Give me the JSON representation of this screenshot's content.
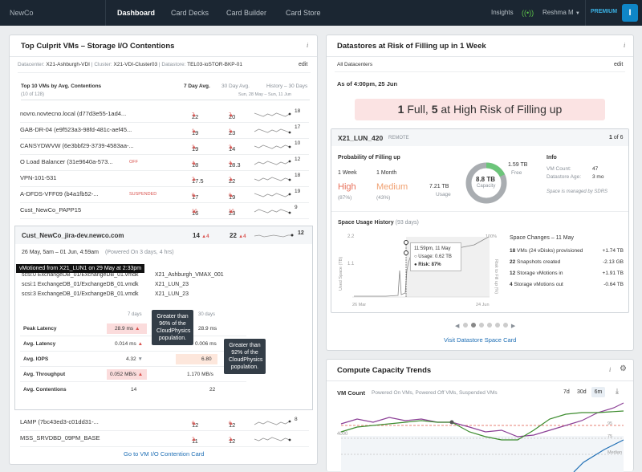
{
  "nav": {
    "logo": "NewCo",
    "tabs": [
      "Dashboard",
      "Card Decks",
      "Card Builder",
      "Card Store"
    ],
    "insights": "Insights",
    "user": "Reshma M",
    "premium": "PREMIUM",
    "badge": "I"
  },
  "left": {
    "title": "Top Culprit VMs – Storage I/O Contentions",
    "info": "i",
    "filter": {
      "dc_label": "Datacenter:",
      "dc": "X21-Ashburgh-VDI",
      "cl_label": "Cluster:",
      "cl": "X21-VDI-Cluster03",
      "ds_label": "Datastore:",
      "ds": "TEL03-ioSTOR-BKP-01",
      "edit": "edit"
    },
    "table_head": {
      "title": "Top 10 VMs by Avg. Contentions",
      "sub": "(10 of 128)",
      "col1": "7 Day Avg.",
      "col2": "30 Day Avg.",
      "col3": "History – 30 Days",
      "daterange": "Sun, 28 May – Sun, 11 Jun"
    },
    "rows": [
      {
        "name": "novro.novtecno.local (d77d3e55-1ad4...",
        "tag": "",
        "a": "22",
        "ad": "7",
        "b": "20",
        "bd": "7",
        "h": "18"
      },
      {
        "name": "GAB-DR-04 (e9f523a3-98fd-481c-aef45...",
        "tag": "",
        "a": "19",
        "ad": "1",
        "b": "23",
        "bd": "1",
        "h": "17"
      },
      {
        "name": "CANSYDWVW (6e3bbf29-3739-4583aa-...",
        "tag": "",
        "a": "19",
        "ad": "3",
        "b": "14",
        "bd": "3",
        "h": "10"
      },
      {
        "name": "O Load Balancer (31e9640a-573...",
        "tag": "OFF",
        "a": "18",
        "ad": "4",
        "b": "18.3",
        "bd": "4",
        "h": "12"
      },
      {
        "name": "VPN-101-531",
        "tag": "",
        "a": "17.5",
        "ad": "2",
        "b": "22",
        "bd": "2",
        "h": "18"
      },
      {
        "name": "A-DFDS-VFF09 (b4a1fb52-...",
        "tag": "SUSPENDED",
        "a": "17",
        "ad": "6",
        "b": "19",
        "bd": "6",
        "h": "19"
      },
      {
        "name": "Cust_NewCo_PAPP15",
        "tag": "",
        "a": "16",
        "ad": "10",
        "b": "23",
        "bd": "10",
        "h": "9"
      }
    ],
    "expanded": {
      "name": "Cust_NewCo_jira-dev.newco.com",
      "a": "14",
      "ad": "4",
      "b": "22",
      "bd": "4",
      "h": "12",
      "range": "26 May, 5am – 01 Jun, 4:59am",
      "powered": "(Powered On 3 days, 4 hrs)",
      "vmotion": "vMotioned from X21_LUN1 on 29 May at 2:33pm",
      "disks": [
        {
          "d": "scsi:0 ExchangeDB_01/ExchangeDB_01.vmdk",
          "l": "X21_Ashburgh_VMAX_001"
        },
        {
          "d": "scsi:1 ExchangeDB_01/ExchangeDB_01.vmdk",
          "l": "X21_LUN_23"
        },
        {
          "d": "scsi:3 ExchangeDB_01/ExchangeDB_01.vmdk",
          "l": "X21_LUN_23"
        }
      ],
      "col7": "7 days",
      "col30": "30 days",
      "metrics": [
        {
          "n": "Peak Latency",
          "v7": "28.9 ms",
          "v30": "28.9 ms"
        },
        {
          "n": "Avg. Latency",
          "v7": "0.014 ms",
          "v30": "0.006 ms"
        },
        {
          "n": "Avg. IOPS",
          "v7": "4.32",
          "v30": "6.80"
        },
        {
          "n": "Avg. Throughput",
          "v7": "0.052 MB/s",
          "v30": "1.170 MB/s"
        },
        {
          "n": "Avg. Contentions",
          "v7": "14",
          "v30": "22"
        }
      ],
      "tip1": [
        "Greater than",
        "96% of the",
        "CloudPhysics",
        "population."
      ],
      "tip2": [
        "Greater than",
        "92% of the",
        "CloudPhysics",
        "population."
      ]
    },
    "rows2": [
      {
        "name": "LAMP (7bc43ed3-c01dd31-...",
        "a": "12",
        "ad": "6",
        "b": "12",
        "bd": "6",
        "h": "8"
      },
      {
        "name": "MSS_SRVDBD_09PM_BASE",
        "a": "11",
        "ad": "2",
        "b": "12",
        "bd": "2",
        "h": ""
      }
    ],
    "footer": "Go to VM I/O Contention Card"
  },
  "right1": {
    "title": "Datastores at Risk of Filling up in 1 Week",
    "info": "i",
    "filter": "All Datacenters",
    "edit": "edit",
    "asof": "As of 4:00pm, 25 Jun",
    "banner": {
      "n1": "1",
      "t1": " Full, ",
      "n2": "5",
      "t2": " at High Risk of Filling up"
    },
    "ds": {
      "name": "X21_LUN_420",
      "remote": "REMOTE",
      "page": "1",
      "of": " of 6",
      "prob_title": "Probability of Filling up",
      "w1": "1 Week",
      "w2": "1 Month",
      "r1": "High",
      "r2": "Medium",
      "p1": "(87%)",
      "p2": "(43%)",
      "used": "7.21 TB",
      "used_l": "Usage",
      "cap": "8.8 TB",
      "cap_l": "Capacity",
      "free": "1.59 TB",
      "free_l": "Free",
      "used_frac": 0.82,
      "info_title": "Info",
      "vmcount_l": "VM Count:",
      "vmcount": "47",
      "age_l": "Datastore Age:",
      "age": "3 mo",
      "managed": "Space is managed by SDRS",
      "hist_title": "Space Usage History",
      "hist_sub": "(93 days)",
      "y_top": "2.2",
      "y_mid": "1.1",
      "y_axis": "Used Space (TB)",
      "y2_axis": "Risk to Fill up (%)",
      "y2_top": "100%",
      "x1": "26 Mar",
      "x2": "24 Jun",
      "tip_time": "11:59pm, 11 May",
      "tip_usage": "Usage: 0.62 TB",
      "tip_risk": "Risk: 87%",
      "changes_title": "Space Changes – 11 May",
      "changes": [
        {
          "n": "18",
          "t": "VMs (24 vDisks) provisioned",
          "v": "+1.74 TB"
        },
        {
          "n": "22",
          "t": "Snapshots created",
          "v": "-2.13 GB"
        },
        {
          "n": "12",
          "t": "Storage vMotions in",
          "v": "+1.91 TB"
        },
        {
          "n": "4",
          "t": "Storage vMotions out",
          "v": "-0.64 TB"
        }
      ]
    },
    "footer": "Visit Datastore Space Card"
  },
  "right2": {
    "title": "Compute Capacity Trends",
    "info": "i",
    "vm_label": "VM Count",
    "legend": "Powered On VMs, Powered Off VMs, Suspended VMs",
    "ranges": [
      "7d",
      "30d",
      "6m"
    ],
    "y1": "4000",
    "p95": "95",
    "p75": "75",
    "median": "Median"
  }
}
